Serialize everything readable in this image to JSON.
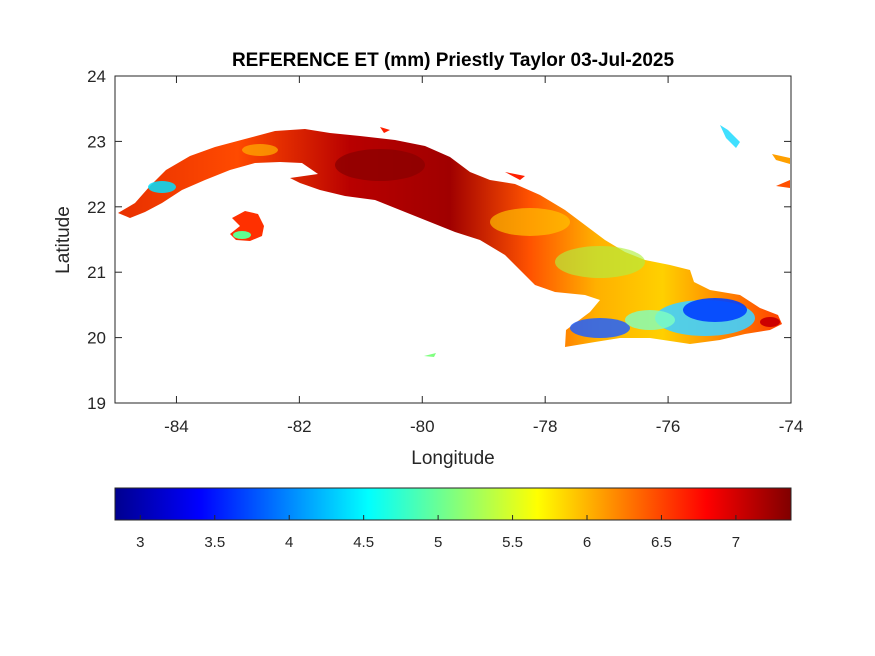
{
  "map": {
    "title": "REFERENCE ET (mm) Priestly Taylor 03-Jul-2025",
    "xlabel": "Longitude",
    "ylabel": "Latitude",
    "xlim": [
      -85,
      -74
    ],
    "ylim": [
      19,
      24
    ],
    "x_ticks": [
      "-84",
      "-82",
      "-80",
      "-78",
      "-76",
      "-74"
    ],
    "y_ticks": [
      "24",
      "23",
      "22",
      "21",
      "20",
      "19"
    ],
    "x_tick_values": [
      -84,
      -82,
      -80,
      -78,
      -76,
      -74
    ],
    "y_tick_values": [
      24,
      23,
      22,
      21,
      20,
      19
    ],
    "colormap": "jet",
    "colors": [
      "#00008f",
      "#0000ff",
      "#00ffff",
      "#ffff00",
      "#ff0000",
      "#800000"
    ]
  },
  "colorbar": {
    "range": [
      2.83,
      7.37
    ],
    "ticks": [
      "3",
      "3.5",
      "4",
      "4.5",
      "5",
      "5.5",
      "6",
      "6.5",
      "7"
    ],
    "tick_values": [
      3,
      3.5,
      4,
      4.5,
      5,
      5.5,
      6,
      6.5,
      7
    ]
  }
}
